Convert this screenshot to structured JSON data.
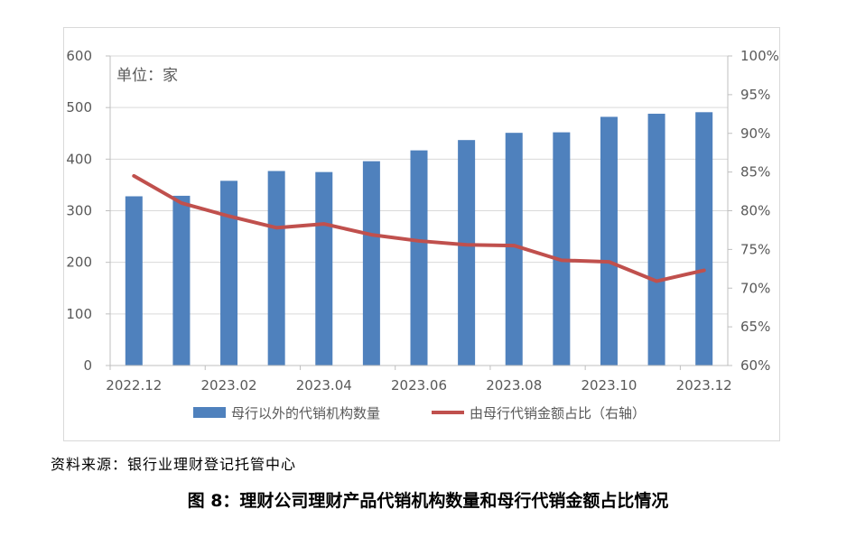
{
  "unit_label": "单位：家",
  "source": "资料来源：银行业理财登记托管中心",
  "caption": "图 8：理财公司理财产品代销机构数量和母行代销金额占比情况",
  "colors": {
    "bar": "#4f81bd",
    "line": "#c0504d",
    "grid": "#d9d9d9",
    "text": "#595959"
  },
  "chart_data": {
    "type": "bar+line",
    "categories": [
      "2022.12",
      "2023.01",
      "2023.02",
      "2023.03",
      "2023.04",
      "2023.05",
      "2023.06",
      "2023.07",
      "2023.08",
      "2023.09",
      "2023.10",
      "2023.11",
      "2023.12"
    ],
    "x_tick_labels": [
      "2022.12",
      "2023.02",
      "2023.04",
      "2023.06",
      "2023.08",
      "2023.10",
      "2023.12"
    ],
    "series": [
      {
        "name": "母行以外的代销机构数量",
        "type": "bar",
        "axis": "left",
        "values": [
          328,
          329,
          358,
          377,
          375,
          396,
          417,
          437,
          451,
          452,
          482,
          488,
          491
        ]
      },
      {
        "name": "由母行代销金额占比（右轴）",
        "type": "line",
        "axis": "right",
        "values": [
          84.5,
          81.0,
          79.3,
          77.8,
          78.3,
          76.9,
          76.1,
          75.6,
          75.5,
          73.6,
          73.4,
          70.9,
          72.3
        ]
      }
    ],
    "ylim": [
      0,
      600
    ],
    "yticks": [
      "0",
      "100",
      "200",
      "300",
      "400",
      "500",
      "600"
    ],
    "y2lim": [
      60,
      100
    ],
    "y2ticks": [
      "60%",
      "65%",
      "70%",
      "75%",
      "80%",
      "85%",
      "90%",
      "95%",
      "100%"
    ],
    "grid": true,
    "legend_position": "bottom"
  }
}
